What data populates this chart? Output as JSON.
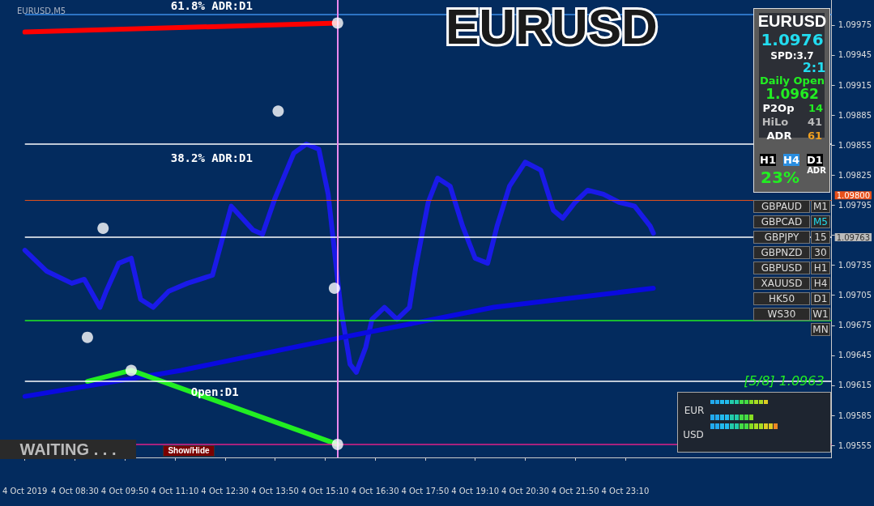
{
  "chart_data": {
    "type": "line",
    "title": "EURUSD",
    "subtitle": "EURUSD,M5",
    "xlim": [
      "2019-10-04T07:10",
      "2019-10-05T04:40"
    ],
    "xticks": [
      {
        "value": "2019-10-04T07:10",
        "label": "4 Oct 2019"
      },
      {
        "value": "2019-10-04T08:30",
        "label": "4 Oct 08:30"
      },
      {
        "value": "2019-10-04T09:50",
        "label": "4 Oct 09:50"
      },
      {
        "value": "2019-10-04T11:10",
        "label": "4 Oct 11:10"
      },
      {
        "value": "2019-10-04T12:30",
        "label": "4 Oct 12:30"
      },
      {
        "value": "2019-10-04T13:50",
        "label": "4 Oct 13:50"
      },
      {
        "value": "2019-10-04T15:10",
        "label": "4 Oct 15:10"
      },
      {
        "value": "2019-10-04T16:30",
        "label": "4 Oct 16:30"
      },
      {
        "value": "2019-10-04T17:50",
        "label": "4 Oct 17:50"
      },
      {
        "value": "2019-10-04T19:10",
        "label": "4 Oct 19:10"
      },
      {
        "value": "2019-10-04T20:30",
        "label": "4 Oct 20:30"
      },
      {
        "value": "2019-10-04T21:50",
        "label": "4 Oct 21:50"
      },
      {
        "value": "2019-10-04T23:10",
        "label": "4 Oct 23:10"
      }
    ],
    "ylim": [
      1.09543,
      1.1
    ],
    "yticks": [
      1.09555,
      1.09585,
      1.09615,
      1.09645,
      1.09675,
      1.09705,
      1.09735,
      {
        "value": 1.09765,
        "label": null
      },
      1.09795,
      1.09825,
      1.09855,
      1.09885,
      1.09915,
      1.09945,
      1.09975
    ],
    "grid": false,
    "marker": "none",
    "line_style": "solid",
    "series": [
      {
        "color": "#1a1ae8",
        "x": [
          "2019-10-04T07:10",
          "2019-10-04T07:45",
          "2019-10-04T08:25",
          "2019-10-04T08:45",
          "2019-10-04T09:10",
          "2019-10-04T09:20",
          "2019-10-04T09:40",
          "2019-10-04T10:00",
          "2019-10-04T10:15",
          "2019-10-04T10:35",
          "2019-10-04T11:00",
          "2019-10-04T11:30",
          "2019-10-04T12:10",
          "2019-10-04T12:40",
          "2019-10-04T13:15",
          "2019-10-04T13:30",
          "2019-10-04T13:50",
          "2019-10-04T14:20",
          "2019-10-04T14:40",
          "2019-10-04T15:00",
          "2019-10-04T15:15",
          "2019-10-04T15:35",
          "2019-10-04T15:50",
          "2019-10-04T16:00",
          "2019-10-04T16:15",
          "2019-10-04T16:25",
          "2019-10-04T16:45",
          "2019-10-04T17:05",
          "2019-10-04T17:25",
          "2019-10-04T17:35",
          "2019-10-04T17:55",
          "2019-10-04T18:10",
          "2019-10-04T18:30",
          "2019-10-04T18:50",
          "2019-10-04T19:10",
          "2019-10-04T19:30",
          "2019-10-04T19:45",
          "2019-10-04T20:05",
          "2019-10-04T20:30",
          "2019-10-04T20:55",
          "2019-10-04T21:15",
          "2019-10-04T21:30",
          "2019-10-04T21:50",
          "2019-10-04T22:10",
          "2019-10-04T22:35",
          "2019-10-04T23:00",
          "2019-10-04T23:25",
          "2019-10-04T23:50",
          "2019-10-04T23:55"
        ],
        "values": [
          1.0975,
          1.09729,
          1.09717,
          1.09721,
          1.09693,
          1.09709,
          1.09737,
          1.09742,
          1.09701,
          1.09693,
          1.09709,
          1.09717,
          1.09725,
          1.09794,
          1.0977,
          1.09766,
          1.09802,
          1.09847,
          1.09856,
          1.09851,
          1.09806,
          1.09693,
          1.09636,
          1.09628,
          1.09653,
          1.09681,
          1.09693,
          1.09681,
          1.09693,
          1.09733,
          1.09798,
          1.09822,
          1.09814,
          1.09774,
          1.09742,
          1.09737,
          1.09774,
          1.09814,
          1.09838,
          1.0983,
          1.0979,
          1.09782,
          1.09798,
          1.0981,
          1.09806,
          1.09798,
          1.09794,
          1.09774,
          1.09767
        ]
      },
      {
        "color": "#0a0ae0",
        "x": [
          "2019-10-04T07:10",
          "2019-10-04T11:20",
          "2019-10-04T15:30",
          "2019-10-04T19:40",
          "2019-10-04T23:55"
        ],
        "values": [
          1.09604,
          1.0963,
          1.09662,
          1.09693,
          1.09712
        ]
      },
      {
        "color": "#ff0000",
        "x": [
          "2019-10-04T07:10",
          "2019-10-04T15:30"
        ],
        "values": [
          1.09968,
          1.09977
        ]
      },
      {
        "color": "#22ee22",
        "x": [
          "2019-10-04T08:50",
          "2019-10-04T10:00",
          "2019-10-04T15:30"
        ],
        "values": [
          1.09619,
          1.0963,
          1.09556
        ]
      },
      {
        "type": "scatter",
        "color": "#ffffff",
        "marker": "circle",
        "x": [
          "2019-10-04T08:50",
          "2019-10-04T09:15",
          "2019-10-04T10:00",
          "2019-10-04T13:55",
          "2019-10-04T15:25",
          "2019-10-04T15:30",
          "2019-10-04T15:30"
        ],
        "values": [
          1.09663,
          1.09772,
          1.0963,
          1.09889,
          1.09712,
          1.09977,
          1.09556
        ]
      }
    ],
    "ref_lines": [
      {
        "axis": "y",
        "value": 1.09986,
        "label": "61.8% ADR:D1",
        "color": "#3c8ee8",
        "line_style": "solid"
      },
      {
        "axis": "y",
        "value": 1.09856,
        "label": "38.2% ADR:D1",
        "color": "#ffffff",
        "line_style": "solid"
      },
      {
        "axis": "y",
        "value": 1.098,
        "label": "1.09800",
        "color": "#e0501a",
        "line_style": "solid"
      },
      {
        "axis": "y",
        "value": 1.09763,
        "label": "1.09763",
        "color": "#ffffff",
        "line_style": "solid"
      },
      {
        "axis": "y",
        "value": 1.0968,
        "color": "#22ee22",
        "line_style": "solid"
      },
      {
        "axis": "y",
        "value": 1.09619,
        "label": "Open:D1",
        "color": "#ffffff",
        "line_style": "solid"
      },
      {
        "axis": "y",
        "value": 1.09556,
        "color": "#e0208a",
        "line_style": "solid"
      },
      {
        "axis": "x",
        "value": "2019-10-04T15:30",
        "color": "#ee88ee",
        "line_style": "solid"
      }
    ],
    "annotations": [
      "EURUSD",
      "1.0976",
      "SPD:3.7",
      "2:1",
      "Daily Open",
      "1.0962",
      "P2Op",
      "14",
      "HiLo",
      "41",
      "ADR",
      "61",
      "H1",
      "H4",
      "D1",
      "23%",
      "ADR",
      "GBPAUD",
      "GBPCAD",
      "GBPJPY",
      "GBPNZD",
      "GBPUSD",
      "XAUUSD",
      "HK50",
      "WS30",
      "M1",
      "M5",
      "15",
      "30",
      "H1",
      "H4",
      "D1",
      "W1",
      "MN",
      "[5/8]  1.0963",
      "WAITING . . .",
      "Show/Hide",
      "EUR",
      "USD"
    ]
  }
}
